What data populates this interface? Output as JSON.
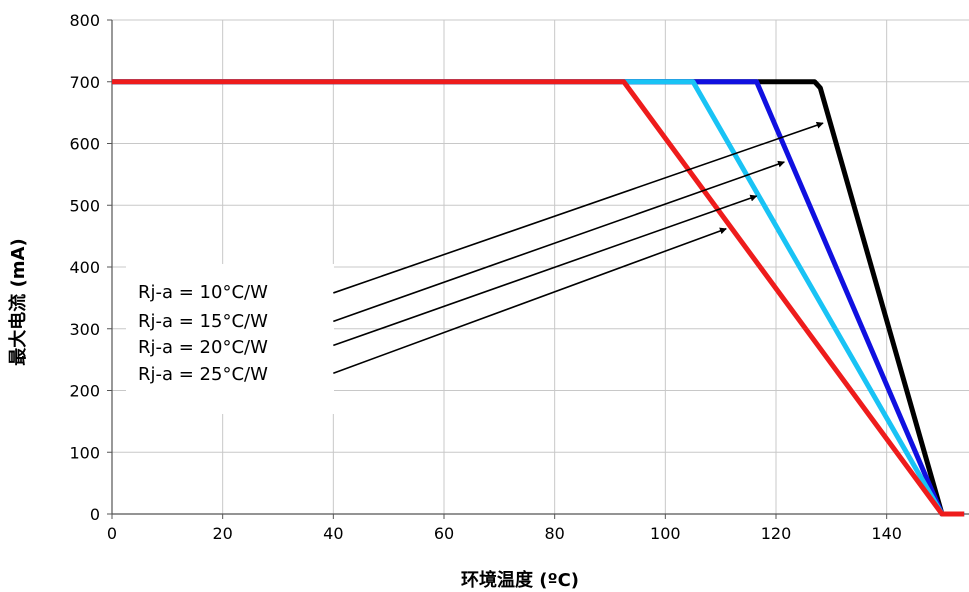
{
  "chart_data": {
    "type": "line",
    "xlabel": "环境温度 (ºC)",
    "ylabel": "最大电流 (mA)",
    "xlim": [
      0,
      150
    ],
    "ylim": [
      0,
      800
    ],
    "xticks": [
      0,
      20,
      40,
      60,
      80,
      100,
      120,
      140
    ],
    "yticks": [
      0,
      100,
      200,
      300,
      400,
      500,
      600,
      700,
      800
    ],
    "grid": true,
    "series": [
      {
        "name": "Rj-a = 10°C/W",
        "color": "#000000",
        "x": [
          0,
          127,
          128,
          150,
          154
        ],
        "y": [
          700,
          700,
          690,
          0,
          0
        ]
      },
      {
        "name": "Rj-a = 15°C/W",
        "color": "#1010e0",
        "x": [
          0,
          116.5,
          150,
          154
        ],
        "y": [
          700,
          700,
          0,
          0
        ]
      },
      {
        "name": "Rj-a = 20°C/W",
        "color": "#19c3f5",
        "x": [
          0,
          105,
          150,
          154
        ],
        "y": [
          700,
          700,
          0,
          0
        ]
      },
      {
        "name": "Rj-a = 25°C/W",
        "color": "#ee1c1c",
        "x": [
          0,
          92.5,
          150,
          154
        ],
        "y": [
          700,
          700,
          0,
          0
        ]
      }
    ],
    "annotations": [
      {
        "label": "Rj-a = 10°C/W",
        "from": [
          40,
          358
        ],
        "to": [
          128.5,
          633
        ]
      },
      {
        "label": "Rj-a = 15°C/W",
        "from": [
          40,
          312
        ],
        "to": [
          121.5,
          570
        ]
      },
      {
        "label": "Rj-a = 20°C/W",
        "from": [
          40,
          273
        ],
        "to": [
          116.5,
          515
        ]
      },
      {
        "label": "Rj-a = 25°C/W",
        "from": [
          40,
          228
        ],
        "to": [
          111,
          462
        ]
      }
    ]
  }
}
